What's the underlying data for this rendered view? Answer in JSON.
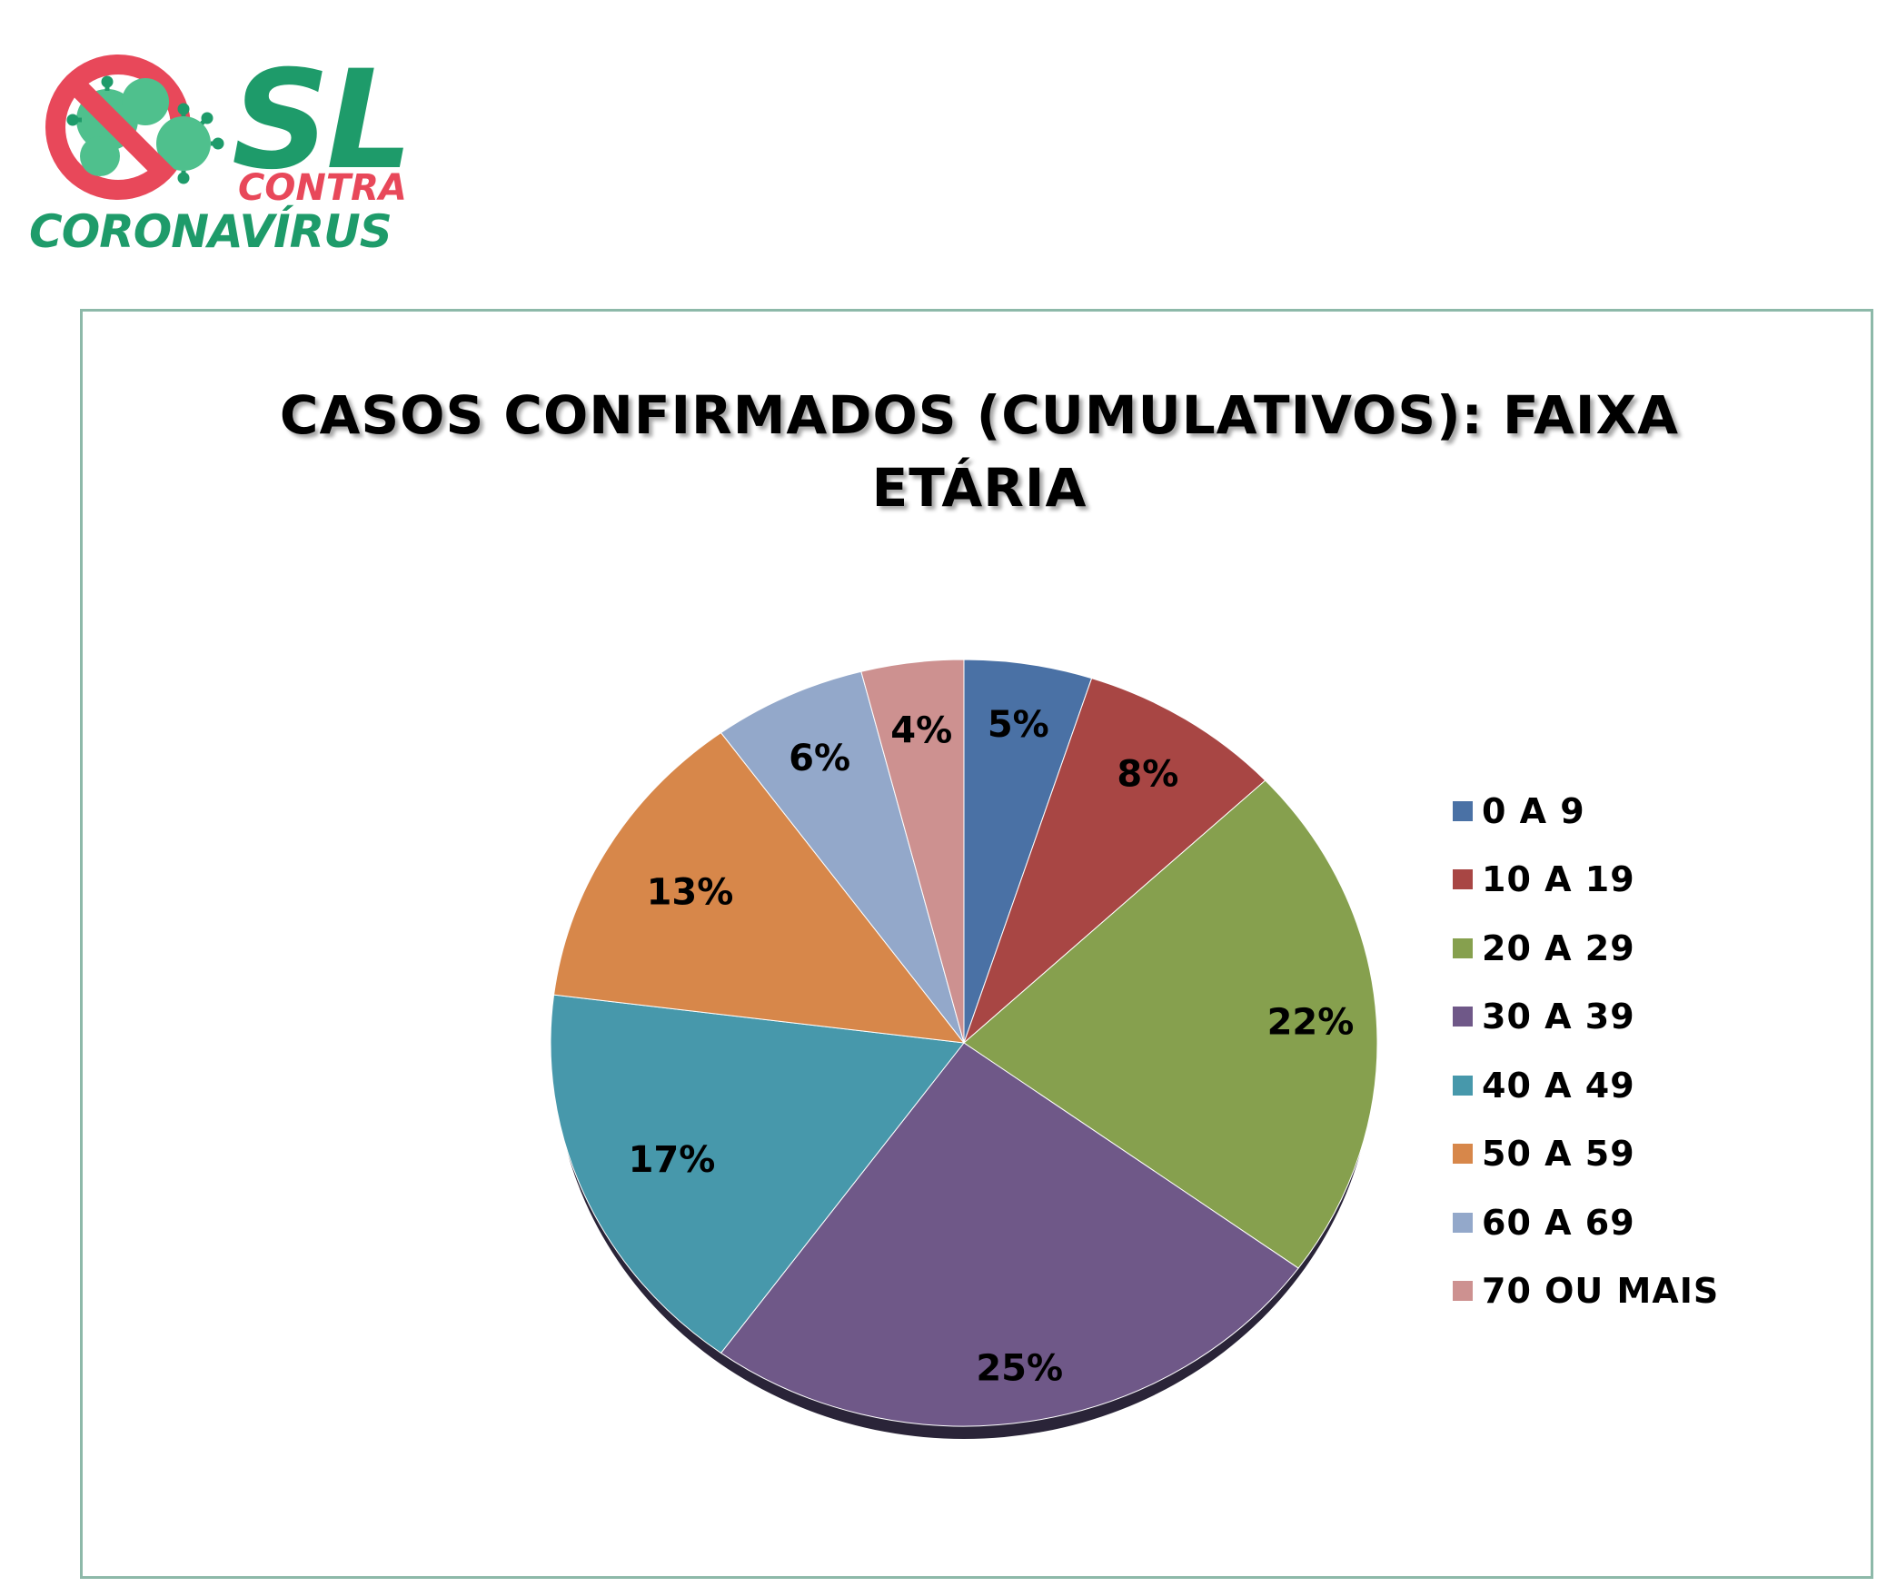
{
  "logo": {
    "line1": "SL",
    "line2": "CONTRA",
    "line3": "CORONAVÍRUS",
    "colors": {
      "green": "#1e9b6a",
      "red": "#e8485a"
    }
  },
  "chart_data": {
    "type": "pie",
    "title": "CASOS CONFIRMADOS (CUMULATIVOS): FAIXA ETÁRIA",
    "title_lines": [
      "CASOS CONFIRMADOS (CUMULATIVOS): FAIXA",
      "ETÁRIA"
    ],
    "categories": [
      "0 A 9",
      "10 A 19",
      "20 A 29",
      "30 A 39",
      "40 A 49",
      "50 A 59",
      "60 A 69",
      "70 OU MAIS"
    ],
    "values": [
      5,
      8,
      22,
      25,
      17,
      13,
      6,
      4
    ],
    "labels": [
      "5%",
      "8%",
      "22%",
      "25%",
      "17%",
      "13%",
      "6%",
      "4%"
    ],
    "colors": [
      "#4a71a5",
      "#a84644",
      "#86a04e",
      "#6f5888",
      "#4798ab",
      "#d7874a",
      "#93a8ca",
      "#cd9190"
    ],
    "legend_position": "right",
    "start": "top, clockwise"
  }
}
